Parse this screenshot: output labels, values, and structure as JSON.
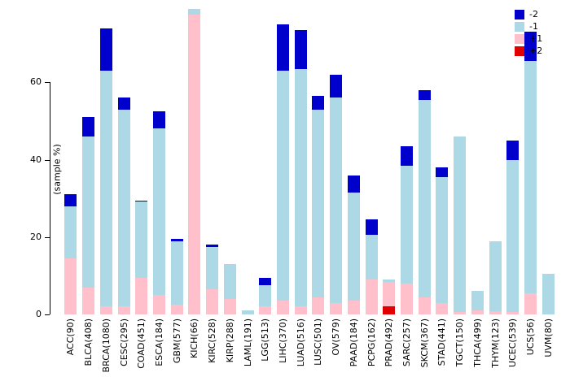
{
  "chart_data": {
    "type": "bar",
    "stacked": true,
    "title": "",
    "xlabel": "",
    "ylabel": "(sample %)",
    "ylim": [
      0,
      80
    ],
    "yticks": [
      0,
      20,
      40,
      60
    ],
    "grid": false,
    "legend_position": "top-right",
    "legend": [
      {
        "label": "-2",
        "color": "#0000CD"
      },
      {
        "label": "-1",
        "color": "#ADD8E6"
      },
      {
        "label": "+1",
        "color": "#FFC0CB"
      },
      {
        "label": "+2",
        "color": "#E00000"
      }
    ],
    "stack_order_bottom_to_top": [
      "+2",
      "+1",
      "-1",
      "-2"
    ],
    "categories": [
      "ACC(90)",
      "BLCA(408)",
      "BRCA(1080)",
      "CESC(295)",
      "COAD(451)",
      "ESCA(184)",
      "GBM(577)",
      "KICH(66)",
      "KIRC(528)",
      "KIRP(288)",
      "LAML(191)",
      "LGG(513)",
      "LIHC(370)",
      "LUAD(516)",
      "LUSC(501)",
      "OV(579)",
      "PAAD(184)",
      "PCPG(162)",
      "PRAD(492)",
      "SARC(257)",
      "SKCM(367)",
      "STAD(441)",
      "TGCT(150)",
      "THCA(499)",
      "THYM(123)",
      "UCEC(539)",
      "UCS(56)",
      "UVM(80)"
    ],
    "series": [
      {
        "name": "+2",
        "color": "#E00000",
        "values": [
          0,
          0,
          0,
          0,
          0,
          0,
          0,
          0,
          0,
          0,
          0,
          0,
          0,
          0,
          0,
          0,
          0,
          0,
          2,
          0,
          0,
          0,
          0,
          0,
          0,
          0,
          0,
          0
        ]
      },
      {
        "name": "+1",
        "color": "#FFC0CB",
        "values": [
          14.5,
          7,
          2,
          2,
          9.5,
          5,
          2.5,
          77.5,
          6.5,
          4,
          0,
          2,
          3.5,
          2,
          4.5,
          3,
          3.5,
          9,
          6.5,
          8,
          4.5,
          3,
          0.7,
          1,
          0.8,
          0.7,
          5.5,
          0
        ]
      },
      {
        "name": "-1",
        "color": "#ADD8E6",
        "values": [
          13.5,
          39,
          61,
          51,
          19.7,
          43,
          16.5,
          1.5,
          11,
          9,
          1,
          5.5,
          59.5,
          61.5,
          48.5,
          53,
          28,
          11.5,
          0.5,
          30.5,
          51,
          32.5,
          45.3,
          5,
          18.2,
          39.3,
          60,
          10.5
        ]
      },
      {
        "name": "-2",
        "color": "#0000CD",
        "values": [
          3,
          5,
          11,
          3,
          0.3,
          4.5,
          0.5,
          0,
          0.5,
          0,
          0,
          2,
          12,
          10,
          3.5,
          6,
          4.5,
          4,
          0,
          5,
          2.5,
          2.5,
          0,
          0,
          0,
          5,
          7.5,
          0
        ]
      }
    ]
  }
}
